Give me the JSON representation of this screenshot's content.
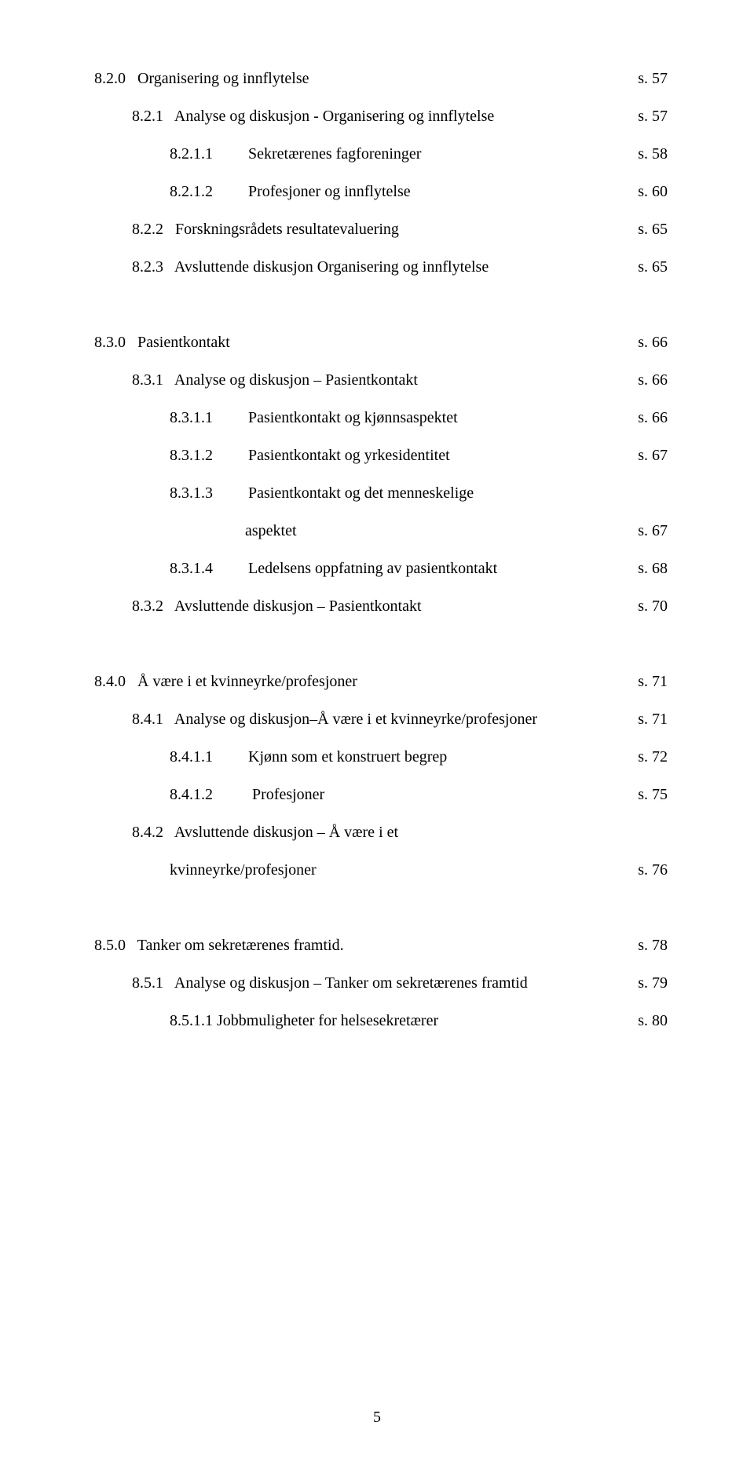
{
  "lines": [
    {
      "id": "l820",
      "indent": "ind0",
      "label": "8.2.0   Organisering og innflytelse",
      "page": "s. 57"
    },
    {
      "id": "l821",
      "indent": "ind1",
      "label": "8.2.1   Analyse og diskusjon - Organisering og innflytelse",
      "page": "s. 57"
    },
    {
      "id": "l8211",
      "indent": "ind2",
      "label": "8.2.1.1         Sekretærenes fagforeninger",
      "page": "s. 58"
    },
    {
      "id": "l8212",
      "indent": "ind2",
      "label": "8.2.1.2         Profesjoner og innflytelse",
      "page": "s. 60"
    },
    {
      "id": "l822",
      "indent": "ind1",
      "label": "8.2.2   Forskningsrådets resultatevaluering",
      "page": "s. 65"
    },
    {
      "id": "l823",
      "indent": "ind1",
      "label": "8.2.3   Avsluttende diskusjon Organisering og innflytelse",
      "page": "s. 65"
    },
    {
      "id": "l830",
      "indent": "ind0",
      "label": "8.3.0   Pasientkontakt",
      "page": "s. 66"
    },
    {
      "id": "l831",
      "indent": "ind1",
      "label": "8.3.1   Analyse og diskusjon – Pasientkontakt",
      "page": "s. 66"
    },
    {
      "id": "l8311",
      "indent": "ind2",
      "label": "8.3.1.1         Pasientkontakt og kjønnsaspektet",
      "page": "s. 66"
    },
    {
      "id": "l8312",
      "indent": "ind2",
      "label": "8.3.1.2         Pasientkontakt og yrkesidentitet",
      "page": "s. 67"
    },
    {
      "id": "l8313",
      "indent": "ind2",
      "label": "8.3.1.3         Pasientkontakt og det menneskelige",
      "page": ""
    },
    {
      "id": "l8313b",
      "indent": "ind-continue",
      "label": "aspektet",
      "page": "s. 67"
    },
    {
      "id": "l8314",
      "indent": "ind2",
      "label": "8.3.1.4         Ledelsens oppfatning av pasientkontakt",
      "page": "s. 68"
    },
    {
      "id": "l832",
      "indent": "ind1",
      "label": "8.3.2   Avsluttende diskusjon – Pasientkontakt",
      "page": "s. 70"
    },
    {
      "id": "l840",
      "indent": "ind0",
      "label": "8.4.0   Å være i et kvinneyrke/profesjoner",
      "page": "s. 71"
    },
    {
      "id": "l841",
      "indent": "ind1",
      "label": "8.4.1   Analyse og diskusjon–Å være i et kvinneyrke/profesjoner",
      "page": "s. 71"
    },
    {
      "id": "l8411",
      "indent": "ind2",
      "label": "8.4.1.1         Kjønn som et konstruert begrep",
      "page": "s. 72"
    },
    {
      "id": "l8412",
      "indent": "ind2",
      "label": "8.4.1.2          Profesjoner",
      "page": "s. 75"
    },
    {
      "id": "l842",
      "indent": "ind1",
      "label": "8.4.2   Avsluttende diskusjon – Å være i et",
      "page": ""
    },
    {
      "id": "l842b",
      "indent": "ind2",
      "label": "kvinneyrke/profesjoner",
      "page": "s. 76"
    },
    {
      "id": "l850",
      "indent": "ind0",
      "label": "8.5.0   Tanker om sekretærenes framtid.",
      "page": "s. 78"
    },
    {
      "id": "l851",
      "indent": "ind1",
      "label": "8.5.1   Analyse og diskusjon – Tanker om sekretærenes framtid",
      "page": "s. 79"
    },
    {
      "id": "l8511",
      "indent": "ind2",
      "label": "8.5.1.1 Jobbmuligheter for helsesekretærer",
      "page": "s. 80"
    }
  ],
  "pageNumber": "5"
}
